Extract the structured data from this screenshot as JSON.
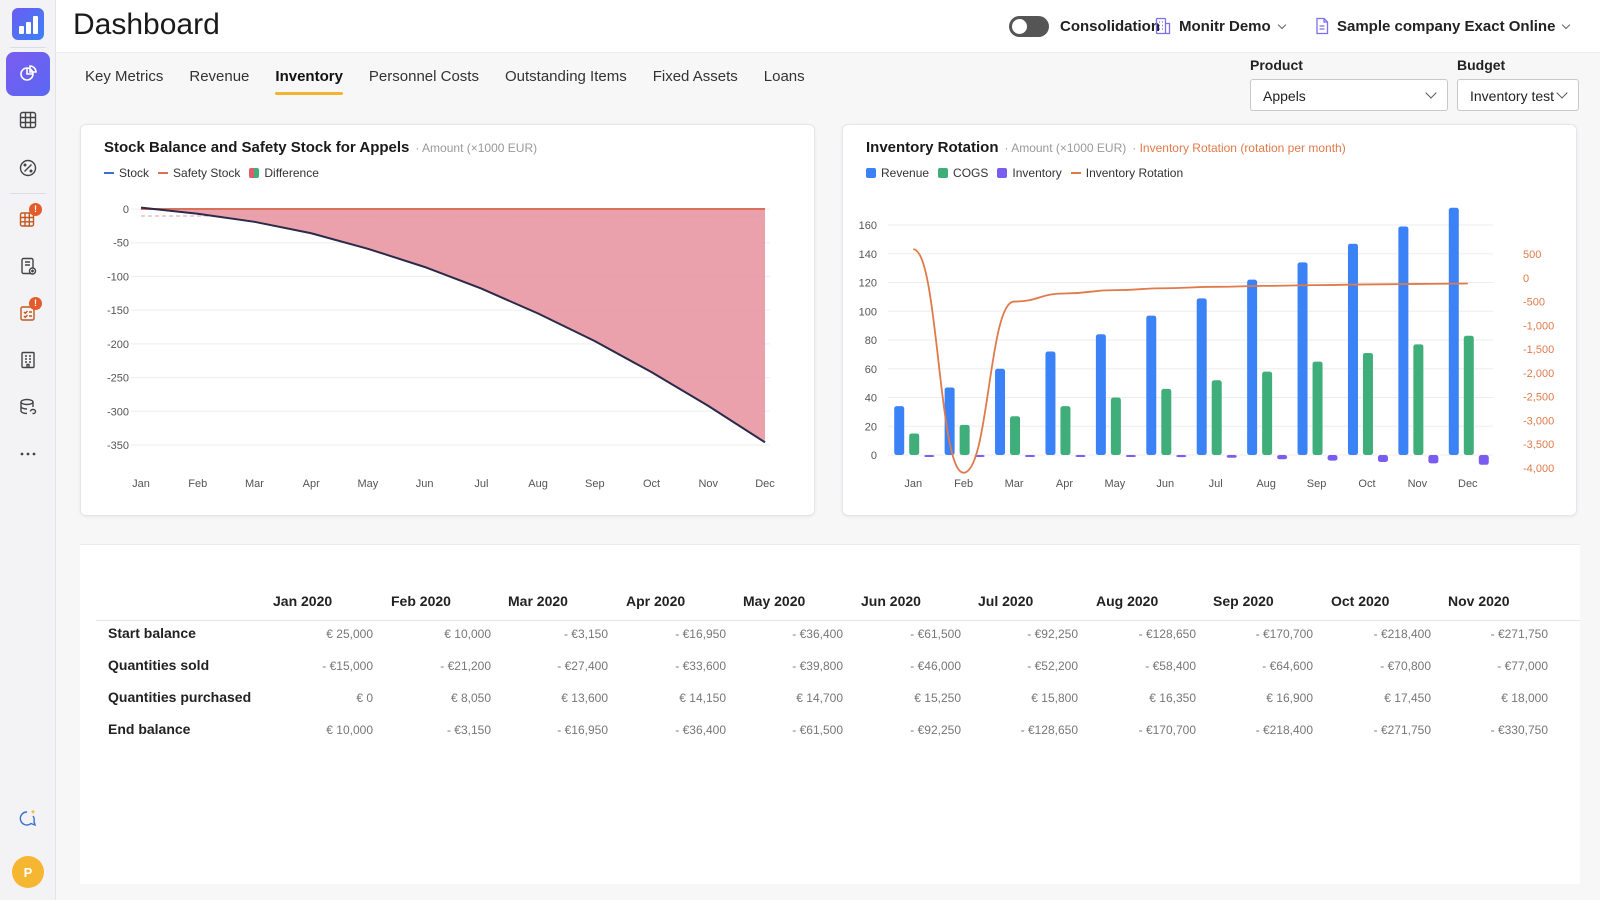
{
  "header": {
    "title": "Dashboard",
    "consolidation_label": "Consolidation",
    "workspace": "Monitr Demo",
    "company": "Sample company Exact Online"
  },
  "sidebar": {
    "items": [
      "dashboard-icon",
      "grid-icon",
      "discount-icon",
      "table-alert-icon",
      "document-add-icon",
      "checklist-alert-icon",
      "building-icon",
      "database-link-icon",
      "more-icon"
    ],
    "avatar_initial": "P"
  },
  "tabs": [
    {
      "label": "Key Metrics",
      "active": false
    },
    {
      "label": "Revenue",
      "active": false
    },
    {
      "label": "Inventory",
      "active": true
    },
    {
      "label": "Personnel Costs",
      "active": false
    },
    {
      "label": "Outstanding Items",
      "active": false
    },
    {
      "label": "Fixed Assets",
      "active": false
    },
    {
      "label": "Loans",
      "active": false
    }
  ],
  "filters": {
    "product_label": "Product",
    "product_value": "Appels",
    "budget_label": "Budget",
    "budget_value": "Inventory test"
  },
  "chart_data": [
    {
      "type": "area",
      "title": "Stock Balance and Safety Stock for Appels",
      "subtitle": "Amount (×1000 EUR)",
      "legend": [
        "Stock",
        "Safety Stock",
        "Difference"
      ],
      "colors": {
        "stock": "#2a2a4a",
        "safety": "#d9705a",
        "difference": "#e8909e"
      },
      "categories": [
        "Jan",
        "Feb",
        "Mar",
        "Apr",
        "May",
        "Jun",
        "Jul",
        "Aug",
        "Sep",
        "Oct",
        "Nov",
        "Dec"
      ],
      "series": [
        {
          "name": "Stock",
          "values": [
            2,
            -7,
            -19,
            -36,
            -59,
            -86,
            -118,
            -155,
            -196,
            -242,
            -292,
            -346
          ]
        },
        {
          "name": "Safety Stock",
          "values": [
            0,
            0,
            0,
            0,
            0,
            0,
            0,
            0,
            0,
            0,
            0,
            0
          ]
        }
      ],
      "yticks": [
        0,
        -50,
        -100,
        -150,
        -200,
        -250,
        -300,
        -350
      ],
      "ylim": [
        -350,
        0
      ]
    },
    {
      "type": "bar",
      "title": "Inventory Rotation",
      "subtitle": "Amount (×1000 EUR)",
      "subtitle2": "Inventory Rotation (rotation per month)",
      "legend": [
        "Revenue",
        "COGS",
        "Inventory",
        "Inventory Rotation"
      ],
      "colors": {
        "revenue": "#3b82f6",
        "cogs": "#3fae7a",
        "inventory": "#7b5cf0",
        "rotation": "#e07a4a"
      },
      "categories": [
        "Jan",
        "Feb",
        "Mar",
        "Apr",
        "May",
        "Jun",
        "Jul",
        "Aug",
        "Sep",
        "Oct",
        "Nov",
        "Dec"
      ],
      "series": [
        {
          "name": "Revenue",
          "values": [
            34,
            47,
            60,
            72,
            84,
            97,
            109,
            122,
            134,
            147,
            159,
            172
          ]
        },
        {
          "name": "COGS",
          "values": [
            15,
            21,
            27,
            34,
            40,
            46,
            52,
            58,
            65,
            71,
            77,
            83
          ]
        },
        {
          "name": "Inventory",
          "values": [
            0,
            0,
            0,
            -0.5,
            -1,
            -1.5,
            -2,
            -3,
            -4,
            -5,
            -6,
            -7
          ]
        },
        {
          "name": "Inventory Rotation",
          "values": [
            600,
            -4100,
            -500,
            -330,
            -260,
            -220,
            -190,
            -170,
            -155,
            -140,
            -130,
            -120
          ]
        }
      ],
      "yticks": [
        0,
        20,
        40,
        60,
        80,
        100,
        120,
        140,
        160
      ],
      "ylim": [
        0,
        170
      ],
      "y2ticks": [
        500,
        0,
        -500,
        -1000,
        -1500,
        -2000,
        -2500,
        -3000,
        -3500,
        -4000
      ],
      "y2ticks_text": [
        "500",
        "0",
        "-500",
        "-1,000",
        "-1,500",
        "-2,000",
        "-2,500",
        "-3,000",
        "-3,500",
        "-4,000"
      ],
      "y2lim": [
        -4000,
        500
      ]
    }
  ],
  "table": {
    "columns": [
      "Jan 2020",
      "Feb 2020",
      "Mar 2020",
      "Apr 2020",
      "May 2020",
      "Jun 2020",
      "Jul 2020",
      "Aug 2020",
      "Sep 2020",
      "Oct 2020",
      "Nov 2020"
    ],
    "rows": [
      {
        "label": "Start balance",
        "values": [
          "€ 25,000",
          "€ 10,000",
          "- €3,150",
          "- €16,950",
          "- €36,400",
          "- €61,500",
          "- €92,250",
          "- €128,650",
          "- €170,700",
          "- €218,400",
          "- €271,750"
        ]
      },
      {
        "label": "Quantities sold",
        "values": [
          "- €15,000",
          "- €21,200",
          "- €27,400",
          "- €33,600",
          "- €39,800",
          "- €46,000",
          "- €52,200",
          "- €58,400",
          "- €64,600",
          "- €70,800",
          "- €77,000"
        ]
      },
      {
        "label": "Quantities purchased",
        "values": [
          "€ 0",
          "€ 8,050",
          "€ 13,600",
          "€ 14,150",
          "€ 14,700",
          "€ 15,250",
          "€ 15,800",
          "€ 16,350",
          "€ 16,900",
          "€ 17,450",
          "€ 18,000"
        ]
      },
      {
        "label": "End balance",
        "values": [
          "€ 10,000",
          "- €3,150",
          "- €16,950",
          "- €36,400",
          "- €61,500",
          "- €92,250",
          "- €128,650",
          "- €170,700",
          "- €218,400",
          "- €271,750",
          "- €330,750"
        ]
      }
    ]
  }
}
